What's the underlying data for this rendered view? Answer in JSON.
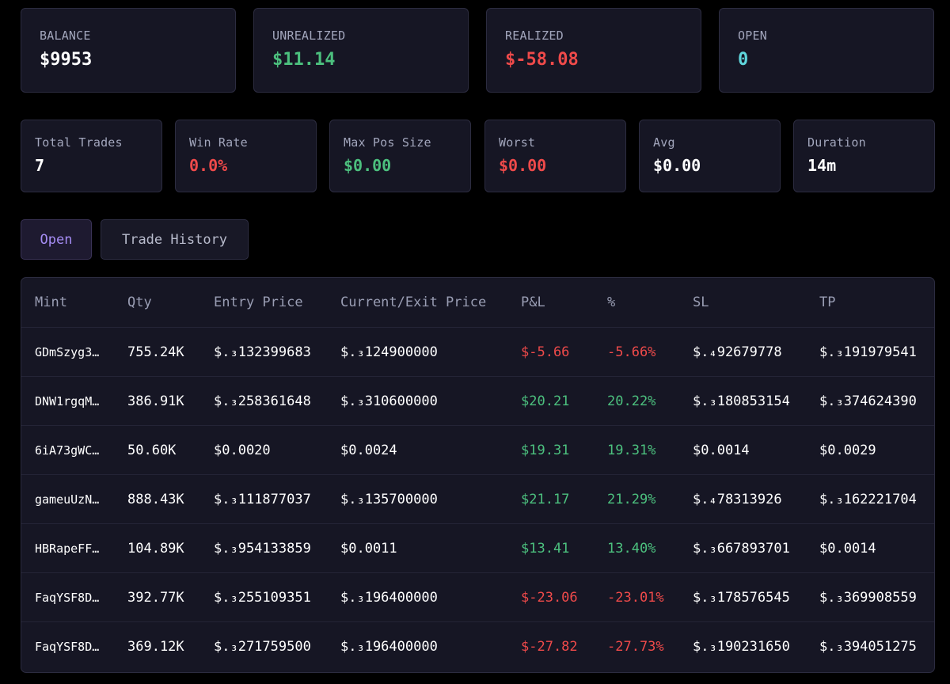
{
  "summary": {
    "balance_label": "BALANCE",
    "balance_value": "$9953",
    "unrealized_label": "UNREALIZED",
    "unrealized_value": "$11.14",
    "realized_label": "REALIZED",
    "realized_value": "$-58.08",
    "open_label": "OPEN",
    "open_value": "0"
  },
  "stats": {
    "total_trades_label": "Total Trades",
    "total_trades_value": "7",
    "win_rate_label": "Win Rate",
    "win_rate_value": "0.0%",
    "max_pos_size_label": "Max Pos Size",
    "max_pos_size_value": "$0.00",
    "worst_label": "Worst",
    "worst_value": "$0.00",
    "avg_label": "Avg",
    "avg_value": "$0.00",
    "duration_label": "Duration",
    "duration_value": "14m"
  },
  "tabs": [
    {
      "label": "Open",
      "active": true
    },
    {
      "label": "Trade History",
      "active": false
    }
  ],
  "colors": {
    "positive": "#4cc07e",
    "negative": "#ef4a4a",
    "accent": "#a58cf3",
    "cyan": "#5fd6dc"
  },
  "table": {
    "columns": [
      "Mint",
      "Qty",
      "Entry Price",
      "Current/Exit Price",
      "P&L",
      "%",
      "SL",
      "TP"
    ],
    "rows": [
      {
        "mint": "GDmSzyg3…",
        "qty": "755.24K",
        "entry": "$.₃132399683",
        "current": "$.₃124900000",
        "pnl": "$-5.66",
        "pct": "-5.66%",
        "sl": "$.₄92679778",
        "tp": "$.₃191979541",
        "sign": "neg"
      },
      {
        "mint": "DNW1rgqM…",
        "qty": "386.91K",
        "entry": "$.₃258361648",
        "current": "$.₃310600000",
        "pnl": "$20.21",
        "pct": "20.22%",
        "sl": "$.₃180853154",
        "tp": "$.₃374624390",
        "sign": "pos"
      },
      {
        "mint": "6iA73gWC…",
        "qty": "50.60K",
        "entry": "$0.0020",
        "current": "$0.0024",
        "pnl": "$19.31",
        "pct": "19.31%",
        "sl": "$0.0014",
        "tp": "$0.0029",
        "sign": "pos"
      },
      {
        "mint": "gameuUzN…",
        "qty": "888.43K",
        "entry": "$.₃111877037",
        "current": "$.₃135700000",
        "pnl": "$21.17",
        "pct": "21.29%",
        "sl": "$.₄78313926",
        "tp": "$.₃162221704",
        "sign": "pos"
      },
      {
        "mint": "HBRapeFF…",
        "qty": "104.89K",
        "entry": "$.₃954133859",
        "current": "$0.0011",
        "pnl": "$13.41",
        "pct": "13.40%",
        "sl": "$.₃667893701",
        "tp": "$0.0014",
        "sign": "pos"
      },
      {
        "mint": "FaqYSF8D…",
        "qty": "392.77K",
        "entry": "$.₃255109351",
        "current": "$.₃196400000",
        "pnl": "$-23.06",
        "pct": "-23.01%",
        "sl": "$.₃178576545",
        "tp": "$.₃369908559",
        "sign": "neg"
      },
      {
        "mint": "FaqYSF8D…",
        "qty": "369.12K",
        "entry": "$.₃271759500",
        "current": "$.₃196400000",
        "pnl": "$-27.82",
        "pct": "-27.73%",
        "sl": "$.₃190231650",
        "tp": "$.₃394051275",
        "sign": "neg"
      }
    ]
  }
}
